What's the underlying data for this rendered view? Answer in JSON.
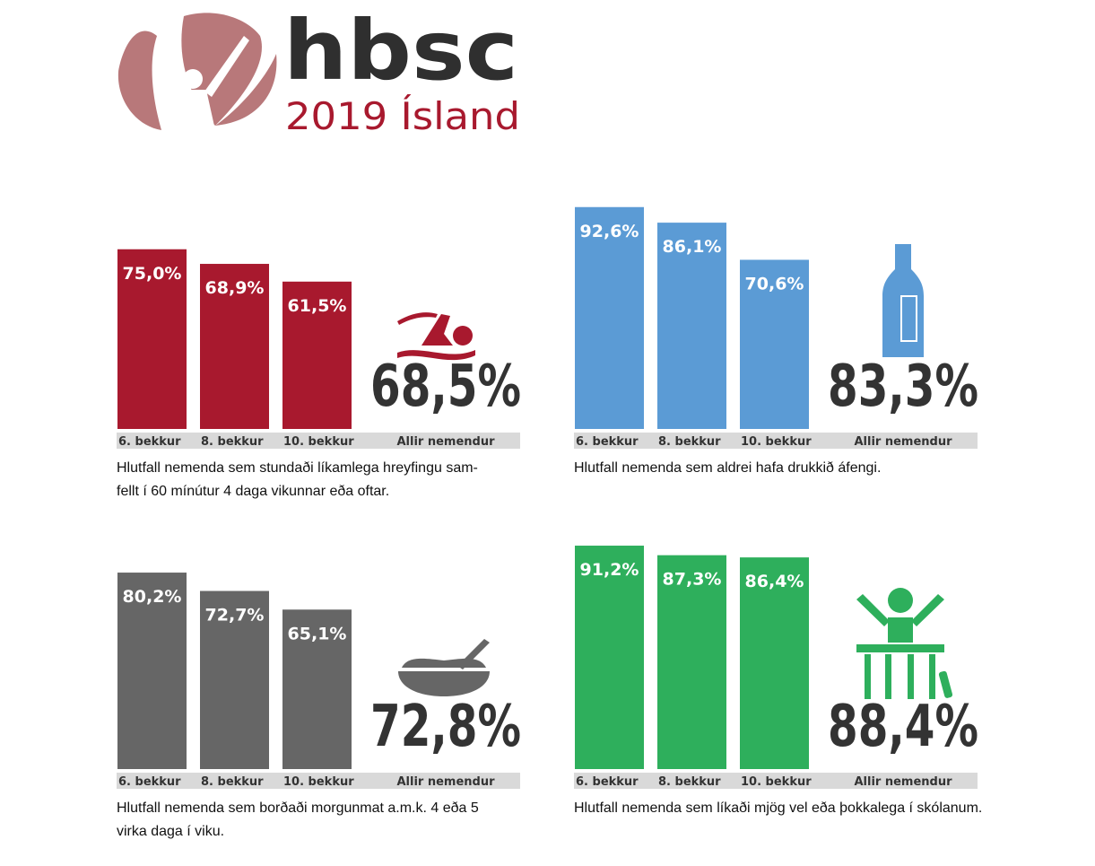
{
  "header": {
    "logo": "hbsc",
    "subtitle": "2019 Ísland"
  },
  "chart_data": [
    {
      "type": "bar",
      "color": "#a8192e",
      "categories": [
        "6. bekkur",
        "8. bekkur",
        "10. bekkur"
      ],
      "values": [
        75.0,
        68.9,
        61.5
      ],
      "value_labels": [
        "75,0%",
        "68,9%",
        "61,5%"
      ],
      "total": {
        "name": "Allir nemendur",
        "value": 68.5,
        "label": "68,5%"
      },
      "caption": [
        "Hlutfall nemenda sem stundaði líkamlega hreyfingu sam-",
        "fellt í 60 mínútur 4 daga vikunnar eða oftar."
      ]
    },
    {
      "type": "bar",
      "color": "#5b9bd5",
      "categories": [
        "6. bekkur",
        "8. bekkur",
        "10. bekkur"
      ],
      "values": [
        92.6,
        86.1,
        70.6
      ],
      "value_labels": [
        "92,6%",
        "86,1%",
        "70,6%"
      ],
      "total": {
        "name": "Allir nemendur",
        "value": 83.3,
        "label": "83,3%"
      },
      "caption": [
        "Hlutfall nemenda sem aldrei hafa drukkið áfengi."
      ]
    },
    {
      "type": "bar",
      "color": "#666666",
      "categories": [
        "6. bekkur",
        "8. bekkur",
        "10. bekkur"
      ],
      "values": [
        80.2,
        72.7,
        65.1
      ],
      "value_labels": [
        "80,2%",
        "72,7%",
        "65,1%"
      ],
      "total": {
        "name": "Allir nemendur",
        "value": 72.8,
        "label": "72,8%"
      },
      "caption": [
        "Hlutfall nemenda sem borðaði morgunmat a.m.k. 4 eða 5",
        "virka daga í  viku."
      ]
    },
    {
      "type": "bar",
      "color": "#2eaf5c",
      "categories": [
        "6. bekkur",
        "8. bekkur",
        "10. bekkur"
      ],
      "values": [
        91.2,
        87.3,
        86.4
      ],
      "value_labels": [
        "91,2%",
        "87,3%",
        "86,4%"
      ],
      "total": {
        "name": "Allir nemendur",
        "value": 88.4,
        "label": "88,4%"
      },
      "caption": [
        "Hlutfall nemenda sem líkaði mjög vel eða þokkalega í skólanum."
      ]
    }
  ]
}
